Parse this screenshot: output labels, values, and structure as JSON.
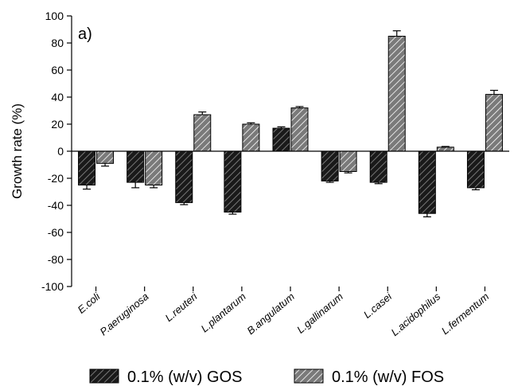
{
  "chart_data": {
    "type": "bar",
    "panel_label": "a)",
    "title": "",
    "xlabel": "",
    "ylabel": "Growth rate (%)",
    "ylim": [
      -100,
      100
    ],
    "yticks": [
      -100,
      -80,
      -60,
      -40,
      -20,
      0,
      20,
      40,
      60,
      80,
      100
    ],
    "categories": [
      "E.coli",
      "P.aeruginosa",
      "L.reuteri",
      "L.plantarum",
      "B.angulatum",
      "L.gallinarum",
      "L.casei",
      "L.acidophilus",
      "L.fermentum"
    ],
    "series": [
      {
        "name": "0.1% (w/v) GOS",
        "color": "#1a1a1a",
        "hatch_color": "#666666",
        "values": [
          -25,
          -23,
          -38,
          -45,
          17,
          -22,
          -23,
          -46,
          -27
        ],
        "errors": [
          3,
          4,
          1.5,
          1.5,
          1,
          1,
          1,
          2.5,
          1.5
        ]
      },
      {
        "name": "0.1% (w/v) FOS",
        "color": "#808080",
        "hatch_color": "#ffffff",
        "values": [
          -9,
          -25,
          27,
          20,
          32,
          -15,
          85,
          3,
          42
        ],
        "errors": [
          2,
          2,
          2,
          1,
          1,
          1,
          4,
          0.5,
          3
        ]
      }
    ],
    "grid": false,
    "legend_position": "bottom"
  }
}
